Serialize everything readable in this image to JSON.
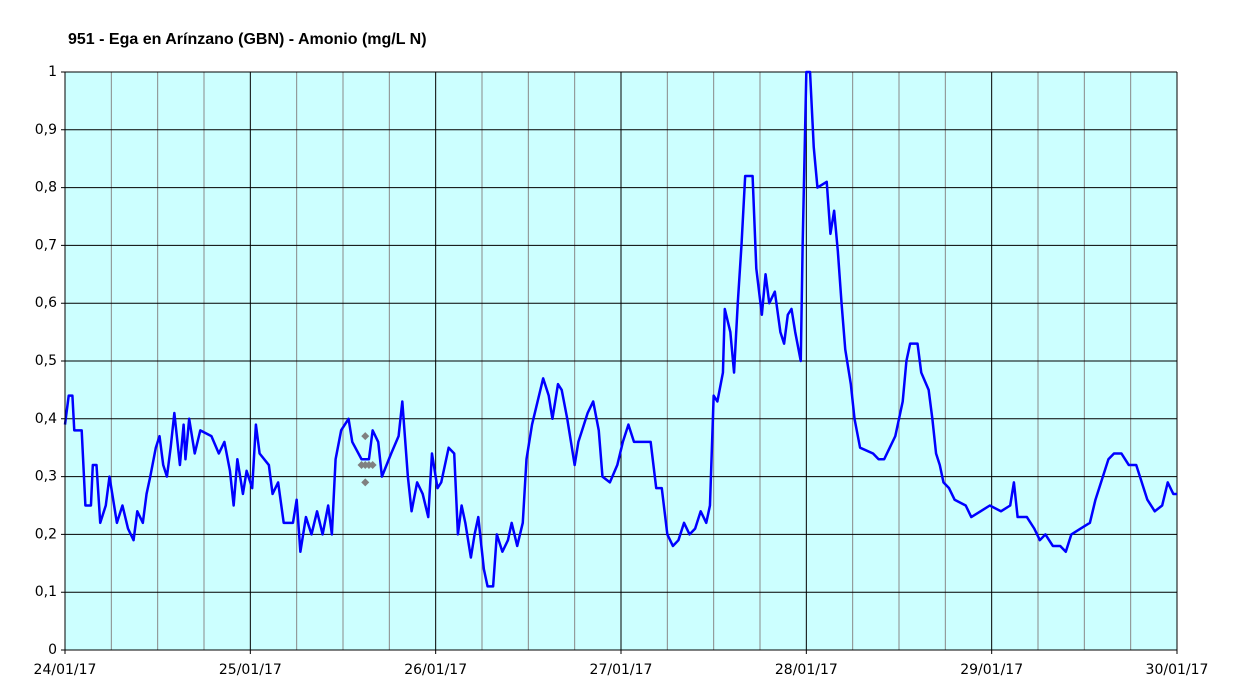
{
  "chart_data": {
    "type": "line",
    "title": "951 - Ega en Arínzano (GBN) - Amonio (mg/L N)",
    "xlim": [
      0,
      6
    ],
    "xticks": [
      {
        "value": 0,
        "label": "24/01/17"
      },
      {
        "value": 1,
        "label": "25/01/17"
      },
      {
        "value": 2,
        "label": "26/01/17"
      },
      {
        "value": 3,
        "label": "27/01/17"
      },
      {
        "value": 4,
        "label": "28/01/17"
      },
      {
        "value": 5,
        "label": "29/01/17"
      },
      {
        "value": 6,
        "label": "30/01/17"
      }
    ],
    "xminorticks": [
      0.25,
      0.5,
      0.75,
      1.25,
      1.5,
      1.75,
      2.25,
      2.5,
      2.75,
      3.25,
      3.5,
      3.75,
      4.25,
      4.5,
      4.75,
      5.25,
      5.5,
      5.75
    ],
    "ylim": [
      0,
      1
    ],
    "yticks": [
      0,
      {
        "value": 0.1,
        "label": "0,1"
      },
      {
        "value": 0.2,
        "label": "0,2"
      },
      {
        "value": 0.3,
        "label": "0,3"
      },
      {
        "value": 0.4,
        "label": "0,4"
      },
      {
        "value": 0.5,
        "label": "0,5"
      },
      {
        "value": 0.6,
        "label": "0,6"
      },
      {
        "value": 0.7,
        "label": "0,7"
      },
      {
        "value": 0.8,
        "label": "0,8"
      },
      {
        "value": 0.9,
        "label": "0,9"
      },
      1
    ],
    "grid": true,
    "background": "#ccffff",
    "series": [
      {
        "color": "#0000ff",
        "x": [
          0.0,
          0.02,
          0.04,
          0.05,
          0.09,
          0.11,
          0.14,
          0.15,
          0.17,
          0.19,
          0.22,
          0.24,
          0.28,
          0.31,
          0.34,
          0.37,
          0.39,
          0.42,
          0.44,
          0.46,
          0.49,
          0.51,
          0.53,
          0.55,
          0.57,
          0.59,
          0.62,
          0.64,
          0.65,
          0.67,
          0.7,
          0.73,
          0.79,
          0.83,
          0.86,
          0.89,
          0.91,
          0.93,
          0.96,
          0.98,
          1.01,
          1.03,
          1.05,
          1.1,
          1.12,
          1.15,
          1.18,
          1.23,
          1.25,
          1.27,
          1.3,
          1.33,
          1.36,
          1.39,
          1.42,
          1.44,
          1.46,
          1.49,
          1.53,
          1.55,
          1.6,
          1.64,
          1.66,
          1.69,
          1.71,
          1.76,
          1.8,
          1.82,
          1.85,
          1.87,
          1.9,
          1.93,
          1.96,
          1.98,
          2.01,
          2.03,
          2.07,
          2.1,
          2.12,
          2.14,
          2.16,
          2.19,
          2.21,
          2.23,
          2.26,
          2.28,
          2.31,
          2.33,
          2.36,
          2.39,
          2.41,
          2.44,
          2.47,
          2.49,
          2.52,
          2.55,
          2.58,
          2.61,
          2.63,
          2.66,
          2.68,
          2.71,
          2.75,
          2.77,
          2.79,
          2.82,
          2.85,
          2.88,
          2.9,
          2.94,
          2.98,
          3.01,
          3.04,
          3.07,
          3.16,
          3.19,
          3.22,
          3.25,
          3.28,
          3.31,
          3.34,
          3.37,
          3.4,
          3.43,
          3.46,
          3.48,
          3.5,
          3.52,
          3.55,
          3.56,
          3.59,
          3.61,
          3.63,
          3.65,
          3.67,
          3.71,
          3.73,
          3.76,
          3.78,
          3.8,
          3.83,
          3.86,
          3.88,
          3.9,
          3.92,
          3.94,
          3.97,
          3.98,
          4.0,
          4.02,
          4.04,
          4.06,
          4.11,
          4.13,
          4.15,
          4.17,
          4.19,
          4.21,
          4.24,
          4.26,
          4.29,
          4.36,
          4.39,
          4.42,
          4.45,
          4.48,
          4.52,
          4.54,
          4.56,
          4.6,
          4.62,
          4.66,
          4.68,
          4.7,
          4.72,
          4.74,
          4.77,
          4.8,
          4.86,
          4.89,
          4.94,
          4.99,
          5.05,
          5.1,
          5.12,
          5.14,
          5.19,
          5.23,
          5.26,
          5.29,
          5.33,
          5.37,
          5.4,
          5.43,
          5.48,
          5.53,
          5.56,
          5.6,
          5.63,
          5.66,
          5.7,
          5.74,
          5.78,
          5.81,
          5.84,
          5.88,
          5.92,
          5.95,
          5.98,
          6.0
        ],
        "values": [
          0.39,
          0.44,
          0.44,
          0.38,
          0.38,
          0.25,
          0.25,
          0.32,
          0.32,
          0.22,
          0.25,
          0.3,
          0.22,
          0.25,
          0.21,
          0.19,
          0.24,
          0.22,
          0.27,
          0.3,
          0.35,
          0.37,
          0.32,
          0.3,
          0.35,
          0.41,
          0.32,
          0.39,
          0.33,
          0.4,
          0.34,
          0.38,
          0.37,
          0.34,
          0.36,
          0.31,
          0.25,
          0.33,
          0.27,
          0.31,
          0.28,
          0.39,
          0.34,
          0.32,
          0.27,
          0.29,
          0.22,
          0.22,
          0.26,
          0.17,
          0.23,
          0.2,
          0.24,
          0.2,
          0.25,
          0.2,
          0.33,
          0.38,
          0.4,
          0.36,
          0.33,
          0.33,
          0.38,
          0.36,
          0.3,
          0.34,
          0.37,
          0.43,
          0.3,
          0.24,
          0.29,
          0.27,
          0.23,
          0.34,
          0.28,
          0.29,
          0.35,
          0.34,
          0.2,
          0.25,
          0.22,
          0.16,
          0.2,
          0.23,
          0.14,
          0.11,
          0.11,
          0.2,
          0.17,
          0.19,
          0.22,
          0.18,
          0.22,
          0.33,
          0.39,
          0.43,
          0.47,
          0.44,
          0.4,
          0.46,
          0.45,
          0.4,
          0.32,
          0.36,
          0.38,
          0.41,
          0.43,
          0.38,
          0.3,
          0.29,
          0.32,
          0.36,
          0.39,
          0.36,
          0.36,
          0.28,
          0.28,
          0.2,
          0.18,
          0.19,
          0.22,
          0.2,
          0.21,
          0.24,
          0.22,
          0.25,
          0.44,
          0.43,
          0.48,
          0.59,
          0.55,
          0.48,
          0.6,
          0.7,
          0.82,
          0.82,
          0.66,
          0.58,
          0.65,
          0.6,
          0.62,
          0.55,
          0.53,
          0.58,
          0.59,
          0.55,
          0.5,
          0.7,
          1.0,
          1.0,
          0.87,
          0.8,
          0.81,
          0.72,
          0.76,
          0.69,
          0.6,
          0.52,
          0.46,
          0.4,
          0.35,
          0.34,
          0.33,
          0.33,
          0.35,
          0.37,
          0.43,
          0.5,
          0.53,
          0.53,
          0.48,
          0.45,
          0.4,
          0.34,
          0.32,
          0.29,
          0.28,
          0.26,
          0.25,
          0.23,
          0.24,
          0.25,
          0.24,
          0.25,
          0.29,
          0.23,
          0.23,
          0.21,
          0.19,
          0.2,
          0.18,
          0.18,
          0.17,
          0.2,
          0.21,
          0.22,
          0.26,
          0.3,
          0.33,
          0.34,
          0.34,
          0.32,
          0.32,
          0.29,
          0.26,
          0.24,
          0.25,
          0.29,
          0.27,
          0.27
        ]
      },
      {
        "color": "#808080",
        "markers_only": true,
        "x": [
          1.6,
          1.62,
          1.64,
          1.66,
          1.62,
          1.62
        ],
        "values": [
          0.32,
          0.32,
          0.32,
          0.32,
          0.37,
          0.29
        ]
      }
    ]
  }
}
